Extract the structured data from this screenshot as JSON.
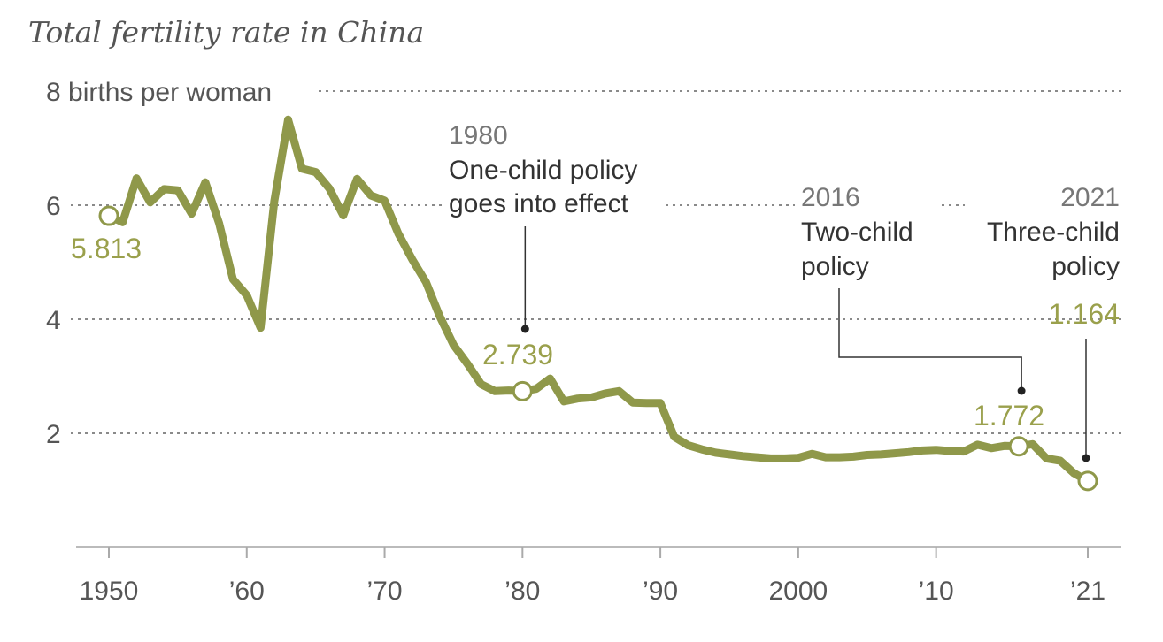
{
  "chart_data": {
    "type": "line",
    "title": "Total fertility rate in China",
    "xlabel": "",
    "ylabel": "births per woman",
    "xlim": [
      1950,
      2021
    ],
    "ylim": [
      0,
      8
    ],
    "y_ticks": [
      {
        "value": 8,
        "label": "8 births per woman"
      },
      {
        "value": 6,
        "label": "6"
      },
      {
        "value": 4,
        "label": "4"
      },
      {
        "value": 2,
        "label": "2"
      }
    ],
    "x_ticks": [
      {
        "value": 1950,
        "label": "1950"
      },
      {
        "value": 1960,
        "label": "’60"
      },
      {
        "value": 1970,
        "label": "’70"
      },
      {
        "value": 1980,
        "label": "’80"
      },
      {
        "value": 1990,
        "label": "’90"
      },
      {
        "value": 2000,
        "label": "2000"
      },
      {
        "value": 2010,
        "label": "’10"
      },
      {
        "value": 2021,
        "label": "’21"
      }
    ],
    "grid": true,
    "series": [
      {
        "name": "Total fertility rate",
        "color": "#8f984a",
        "x": [
          1950,
          1951,
          1952,
          1953,
          1954,
          1955,
          1956,
          1957,
          1958,
          1959,
          1960,
          1961,
          1962,
          1963,
          1964,
          1965,
          1966,
          1967,
          1968,
          1969,
          1970,
          1971,
          1972,
          1973,
          1974,
          1975,
          1976,
          1977,
          1978,
          1979,
          1980,
          1981,
          1982,
          1983,
          1984,
          1985,
          1986,
          1987,
          1988,
          1989,
          1990,
          1991,
          1992,
          1993,
          1994,
          1995,
          1996,
          1997,
          1998,
          1999,
          2000,
          2001,
          2002,
          2003,
          2004,
          2005,
          2006,
          2007,
          2008,
          2009,
          2010,
          2011,
          2012,
          2013,
          2014,
          2015,
          2016,
          2017,
          2018,
          2019,
          2020,
          2021
        ],
        "values": [
          5.813,
          5.7,
          6.47,
          6.05,
          6.28,
          6.26,
          5.85,
          6.4,
          5.68,
          4.7,
          4.42,
          3.85,
          6.07,
          7.5,
          6.64,
          6.58,
          6.29,
          5.82,
          6.46,
          6.17,
          6.08,
          5.5,
          5.05,
          4.65,
          4.05,
          3.55,
          3.22,
          2.86,
          2.74,
          2.75,
          2.739,
          2.78,
          2.96,
          2.56,
          2.61,
          2.63,
          2.7,
          2.74,
          2.54,
          2.53,
          2.53,
          1.94,
          1.79,
          1.72,
          1.66,
          1.63,
          1.6,
          1.58,
          1.56,
          1.56,
          1.57,
          1.64,
          1.58,
          1.58,
          1.59,
          1.62,
          1.63,
          1.65,
          1.67,
          1.7,
          1.71,
          1.69,
          1.68,
          1.8,
          1.74,
          1.78,
          1.772,
          1.81,
          1.56,
          1.52,
          1.3,
          1.164
        ]
      }
    ],
    "highlighted_points": [
      {
        "x": 1950,
        "y": 5.813,
        "label": "5.813"
      },
      {
        "x": 1980,
        "y": 2.739,
        "label": "2.739"
      },
      {
        "x": 2016,
        "y": 1.772,
        "label": "1.772"
      },
      {
        "x": 2021,
        "y": 1.164,
        "label": "1.164"
      }
    ],
    "annotations": [
      {
        "id": "one-child",
        "year_label": "1980",
        "text_lines": [
          "One-child policy",
          "goes into effect"
        ]
      },
      {
        "id": "two-child",
        "year_label": "2016",
        "text_lines": [
          "Two-child",
          "policy"
        ]
      },
      {
        "id": "three-child",
        "year_label": "2021",
        "text_lines": [
          "Three-child",
          "policy"
        ]
      }
    ]
  }
}
